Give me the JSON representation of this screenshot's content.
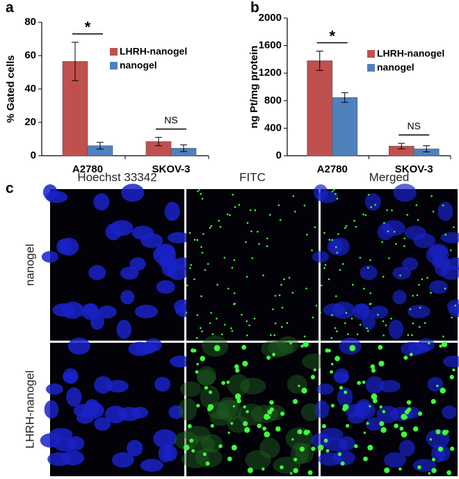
{
  "chart_data": [
    {
      "type": "bar",
      "panel": "a",
      "y_label": "% Gated cells",
      "categories": [
        "A2780",
        "SKOV-3"
      ],
      "series": [
        {
          "name": "LHRH-nanogel",
          "color": "#c0504d",
          "values": [
            56.5,
            8.5
          ],
          "errors": [
            11.5,
            2.5
          ]
        },
        {
          "name": "nanogel",
          "color": "#4f81bd",
          "values": [
            6,
            4.5
          ],
          "errors": [
            2,
            2
          ]
        }
      ],
      "ylim": [
        0,
        80
      ],
      "yticks": [
        0,
        20,
        40,
        60,
        80
      ],
      "annotations": [
        "*",
        "NS"
      ]
    },
    {
      "type": "bar",
      "panel": "b",
      "y_label": "ng Pt/mg protein",
      "categories": [
        "A2780",
        "SKOV-3"
      ],
      "series": [
        {
          "name": "LHRH-nanogel",
          "color": "#c0504d",
          "values": [
            1380,
            140
          ],
          "errors": [
            140,
            40
          ]
        },
        {
          "name": "nanogel",
          "color": "#4f81bd",
          "values": [
            845,
            100
          ],
          "errors": [
            70,
            45
          ]
        }
      ],
      "ylim": [
        0,
        2000
      ],
      "yticks": [
        0,
        400,
        800,
        1200,
        1600,
        2000
      ],
      "annotations": [
        "*",
        "NS"
      ]
    }
  ],
  "panel_c": {
    "panel": "c",
    "columns": [
      "Hoechst 33342",
      "FITC",
      "Merged"
    ],
    "rows": [
      "nanogel",
      "LHRH-nanogel"
    ]
  }
}
